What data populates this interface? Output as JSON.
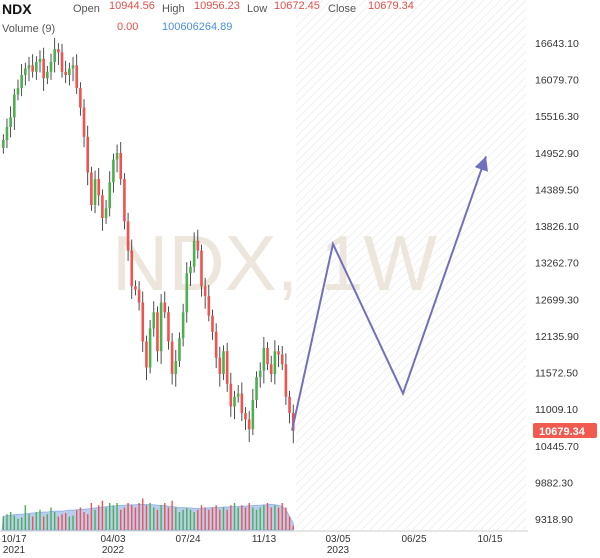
{
  "header": {
    "symbol": "NDX",
    "open_label": "Open",
    "open_value": "10944.56",
    "high_label": "High",
    "high_value": "10956.23",
    "low_label": "Low",
    "low_value": "10672.45",
    "close_label": "Close",
    "close_value": "10679.34",
    "volume_label": "Volume (9)",
    "volume_value": "0.00",
    "volume_ma_value": "100606264.89"
  },
  "watermark": "NDX, 1W",
  "price_badge": "10679.34",
  "colors": {
    "up": "#4caf50",
    "down": "#ef5350",
    "arrow": "#7070bf",
    "badge": "#f05a4f",
    "volume_area": "#b9cdee",
    "future_hatch": "#e6e6e6"
  },
  "chart_data": {
    "type": "candlestick",
    "interval": "1W",
    "y_axis": {
      "position": "right",
      "ticks": [
        16643.1,
        16079.7,
        15516.3,
        14952.9,
        14389.5,
        13826.1,
        13262.7,
        12699.3,
        12135.9,
        11572.5,
        11009.1,
        10445.7,
        9882.3,
        9318.9
      ],
      "tick_labels": [
        "16643.10",
        "16079.70",
        "15516.30",
        "14952.90",
        "14389.50",
        "13826.10",
        "13262.70",
        "12699.30",
        "12135.90",
        "11572.50",
        "11009.10",
        "10445.70",
        "9882.30",
        "9318.90"
      ]
    },
    "x_axis": {
      "ticks": [
        {
          "label": "10/17",
          "sub": "2021"
        },
        {
          "label": "04/03",
          "sub": "2022"
        },
        {
          "label": "07/24",
          "sub": ""
        },
        {
          "label": "11/13",
          "sub": ""
        },
        {
          "label": "03/05",
          "sub": "2023"
        },
        {
          "label": "06/25",
          "sub": ""
        },
        {
          "label": "10/15",
          "sub": ""
        }
      ]
    },
    "candles_close": [
      15150,
      15350,
      15500,
      15850,
      15950,
      16150,
      16250,
      16300,
      16200,
      16350,
      16400,
      16100,
      16200,
      16350,
      16550,
      16500,
      16200,
      16150,
      16250,
      16300,
      15950,
      15650,
      15200,
      14650,
      14150,
      14550,
      14300,
      13950,
      14100,
      14500,
      14850,
      14950,
      14550,
      13900,
      13450,
      12900,
      12850,
      12650,
      12050,
      11650,
      12250,
      12500,
      11900,
      12650,
      12500,
      12050,
      11550,
      11750,
      12100,
      12500,
      13100,
      13200,
      13600,
      13450,
      12900,
      12750,
      12450,
      12200,
      11800,
      11550,
      11900,
      11400,
      11050,
      11200,
      11250,
      10950,
      10850,
      10700,
      11150,
      11500,
      11600,
      11950,
      11700,
      11550,
      11900,
      11850,
      11700,
      11200,
      10950,
      10679.34
    ],
    "projection": {
      "points": [
        10679.34,
        13550,
        11250,
        14900
      ],
      "style": "arrow"
    },
    "volume": {
      "label": "Volume (9)",
      "bars_relative": [
        0.3,
        0.35,
        0.4,
        0.32,
        0.25,
        0.28,
        0.55,
        0.35,
        0.3,
        0.4,
        0.45,
        0.3,
        0.35,
        0.5,
        0.4,
        0.3,
        0.35,
        0.38,
        0.3,
        0.32,
        0.45,
        0.5,
        0.4,
        0.35,
        0.6,
        0.45,
        0.55,
        0.65,
        0.5,
        0.6,
        0.55,
        0.6,
        0.45,
        0.5,
        0.6,
        0.55,
        0.5,
        0.6,
        0.7,
        0.55,
        0.6,
        0.5,
        0.45,
        0.55,
        0.6,
        0.5,
        0.65,
        0.5,
        0.4,
        0.45,
        0.5,
        0.45,
        0.4,
        0.45,
        0.55,
        0.5,
        0.45,
        0.5,
        0.55,
        0.45,
        0.5,
        0.45,
        0.55,
        0.6,
        0.5,
        0.55,
        0.5,
        0.6,
        0.5,
        0.45,
        0.5,
        0.55,
        0.6,
        0.5,
        0.55,
        0.5,
        0.6,
        0.5,
        0.3,
        0.1
      ],
      "ma_relative": [
        0.3,
        0.32,
        0.33,
        0.34,
        0.35,
        0.35,
        0.36,
        0.37,
        0.38,
        0.38,
        0.39,
        0.4,
        0.4,
        0.41,
        0.42,
        0.42,
        0.42,
        0.43,
        0.44,
        0.44,
        0.45,
        0.46,
        0.46,
        0.47,
        0.48,
        0.49,
        0.5,
        0.51,
        0.52,
        0.53,
        0.53,
        0.54,
        0.55,
        0.55,
        0.56,
        0.56,
        0.56,
        0.57,
        0.57,
        0.57,
        0.56,
        0.56,
        0.55,
        0.55,
        0.54,
        0.53,
        0.52,
        0.51,
        0.5,
        0.5,
        0.49,
        0.49,
        0.48,
        0.48,
        0.48,
        0.49,
        0.49,
        0.5,
        0.5,
        0.5,
        0.51,
        0.51,
        0.52,
        0.52,
        0.52,
        0.53,
        0.53,
        0.54,
        0.54,
        0.55,
        0.55,
        0.56,
        0.56,
        0.57,
        0.56,
        0.55,
        0.52,
        0.45,
        0.3,
        0.15
      ]
    }
  }
}
